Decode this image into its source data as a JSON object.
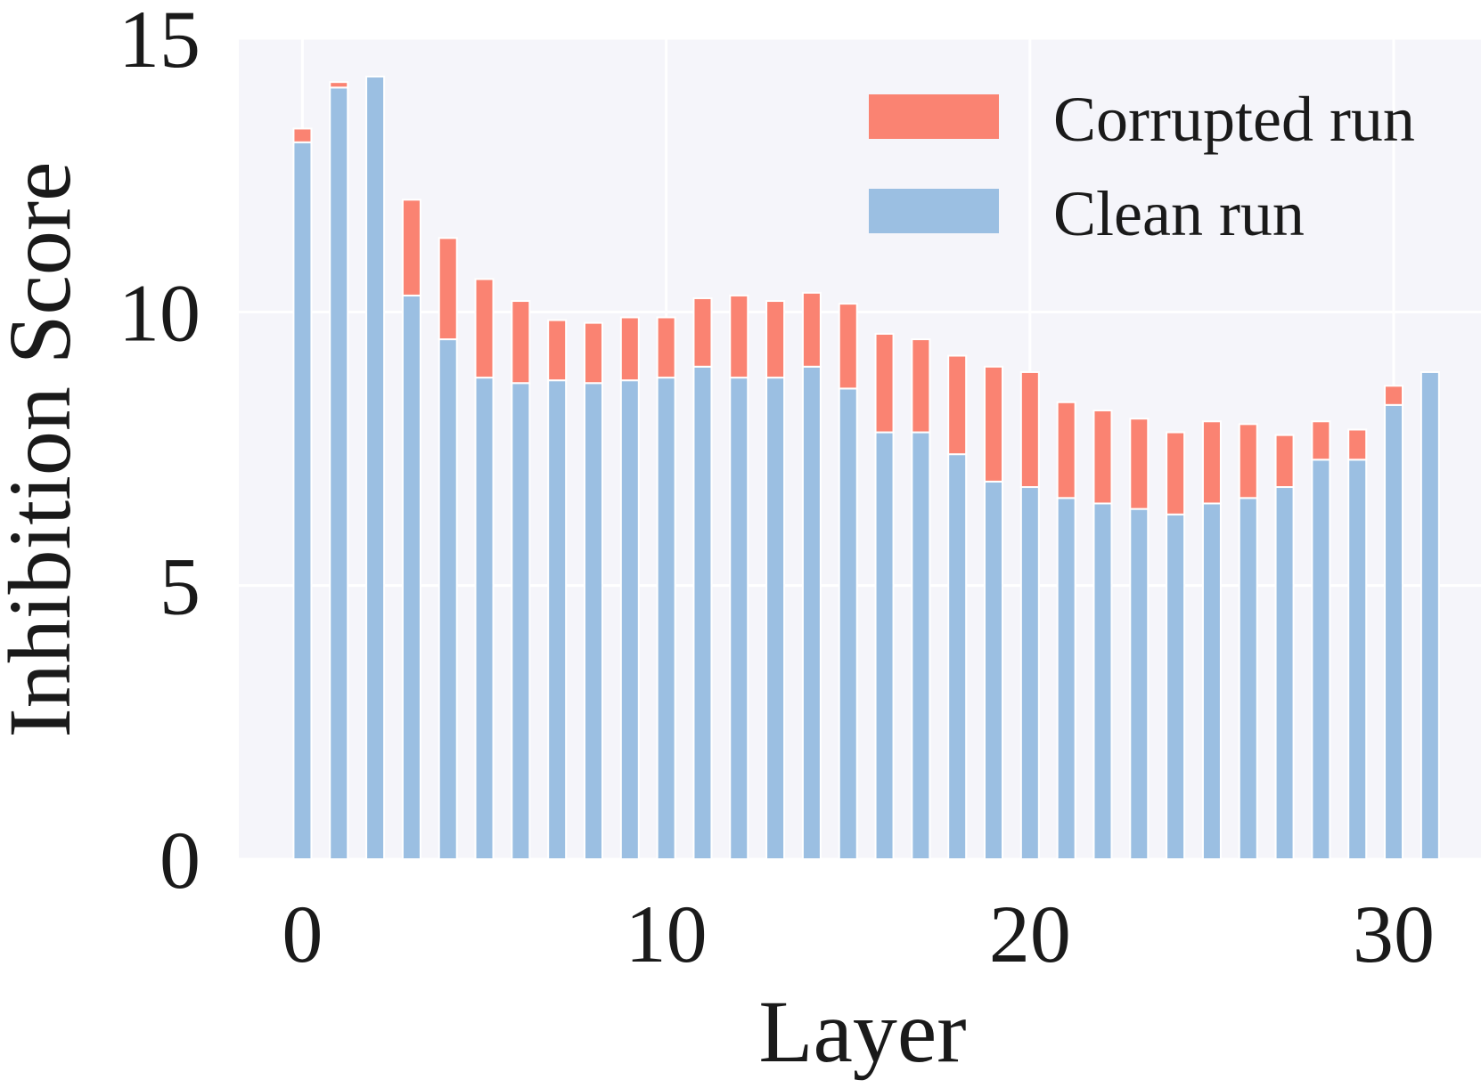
{
  "chart_data": {
    "type": "bar",
    "stacked": true,
    "xlabel": "Layer",
    "ylabel": "Inhibition Score",
    "xlim": [
      -1.75,
      32.4
    ],
    "ylim": [
      0,
      15
    ],
    "xticks": [
      0,
      10,
      20,
      30
    ],
    "yticks": [
      0,
      5,
      10,
      15
    ],
    "grid": true,
    "legend_position": "top-right",
    "x": [
      0,
      1,
      2,
      3,
      4,
      5,
      6,
      7,
      8,
      9,
      10,
      11,
      12,
      13,
      14,
      15,
      16,
      17,
      18,
      19,
      20,
      21,
      22,
      23,
      24,
      25,
      26,
      27,
      28,
      29,
      30,
      31
    ],
    "series": [
      {
        "name": "Clean run",
        "color": "#9bbfe2",
        "values": [
          13.1,
          14.1,
          14.3,
          10.3,
          9.5,
          8.8,
          8.7,
          8.75,
          8.7,
          8.75,
          8.8,
          9.0,
          8.8,
          8.8,
          9.0,
          8.6,
          7.8,
          7.8,
          7.4,
          6.9,
          6.8,
          6.6,
          6.5,
          6.4,
          6.3,
          6.5,
          6.6,
          6.8,
          7.3,
          7.3,
          8.3,
          8.9
        ]
      },
      {
        "name": "Corrupted run",
        "color": "#fa8372",
        "values": [
          0.25,
          0.1,
          0.0,
          1.75,
          1.85,
          1.8,
          1.5,
          1.1,
          1.1,
          1.15,
          1.1,
          1.25,
          1.5,
          1.4,
          1.35,
          1.55,
          1.8,
          1.7,
          1.8,
          2.1,
          2.1,
          1.75,
          1.7,
          1.65,
          1.5,
          1.5,
          1.35,
          0.95,
          0.7,
          0.55,
          0.35,
          0.0
        ]
      }
    ]
  }
}
